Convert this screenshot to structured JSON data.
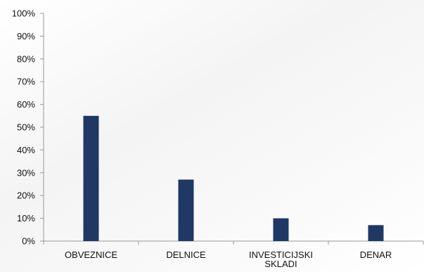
{
  "chart_data": {
    "type": "bar",
    "categories": [
      [
        "OBVEZNICE"
      ],
      [
        "DELNICE"
      ],
      [
        "INVESTICIJSKI",
        "SKLADI"
      ],
      [
        "DENAR"
      ]
    ],
    "values": [
      55,
      27,
      10,
      7
    ],
    "unit": "%",
    "ylim": [
      0,
      100
    ],
    "yticks": [
      0,
      10,
      20,
      30,
      40,
      50,
      60,
      70,
      80,
      90,
      100
    ],
    "ytick_labels": [
      "0%",
      "10%",
      "20%",
      "30%",
      "40%",
      "50%",
      "60%",
      "70%",
      "80%",
      "90%",
      "100%"
    ],
    "bar_color": "#1f3864",
    "axis_color": "#999999",
    "grid": false,
    "legend": "none",
    "title": "",
    "xlabel": "",
    "ylabel": ""
  }
}
